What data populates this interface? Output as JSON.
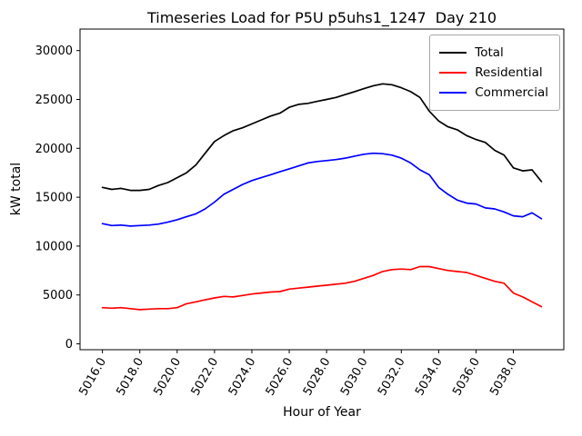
{
  "figure": {
    "title": "Timeseries Load for P5U p5uhs1_1247  Day 210",
    "xlabel": "Hour of Year",
    "ylabel": "kW total"
  },
  "chart_data": {
    "type": "line",
    "title": "Timeseries Load for P5U p5uhs1_1247  Day 210",
    "xlabel": "Hour of Year",
    "ylabel": "kW total",
    "legend_position": "upper right",
    "grid": false,
    "xlim": [
      5014.8,
      5040.7
    ],
    "ylim": [
      -600,
      32200
    ],
    "x_ticks": [
      5016.0,
      5018.0,
      5020.0,
      5022.0,
      5024.0,
      5026.0,
      5028.0,
      5030.0,
      5032.0,
      5034.0,
      5036.0,
      5038.0
    ],
    "y_ticks": [
      0,
      5000,
      10000,
      15000,
      20000,
      25000,
      30000
    ],
    "x": [
      5016.0,
      5016.5,
      5017.0,
      5017.5,
      5018.0,
      5018.5,
      5019.0,
      5019.5,
      5020.0,
      5020.5,
      5021.0,
      5021.5,
      5022.0,
      5022.5,
      5023.0,
      5023.5,
      5024.0,
      5024.5,
      5025.0,
      5025.5,
      5026.0,
      5026.5,
      5027.0,
      5027.5,
      5028.0,
      5028.5,
      5029.0,
      5029.5,
      5030.0,
      5030.5,
      5031.0,
      5031.5,
      5032.0,
      5032.5,
      5033.0,
      5033.5,
      5034.0,
      5034.5,
      5035.0,
      5035.5,
      5036.0,
      5036.5,
      5037.0,
      5037.5,
      5038.0,
      5038.5,
      5039.0,
      5039.5
    ],
    "series": [
      {
        "name": "Total",
        "color": "#000000",
        "values": [
          16000,
          15800,
          15900,
          15700,
          15700,
          15800,
          16200,
          16500,
          17000,
          17500,
          18300,
          19500,
          20700,
          21300,
          21800,
          22100,
          22500,
          22900,
          23300,
          23600,
          24200,
          24500,
          24600,
          24800,
          25000,
          25200,
          25500,
          25800,
          26100,
          26400,
          26600,
          26500,
          26200,
          25800,
          25200,
          23800,
          22800,
          22200,
          21900,
          21300,
          20900,
          20600,
          19800,
          19300,
          18000,
          17700,
          17800,
          16600
        ]
      },
      {
        "name": "Residential",
        "color": "#ff0000",
        "values": [
          3700,
          3650,
          3700,
          3600,
          3500,
          3550,
          3600,
          3600,
          3700,
          4100,
          4300,
          4500,
          4700,
          4850,
          4800,
          4950,
          5100,
          5200,
          5300,
          5350,
          5600,
          5700,
          5800,
          5900,
          6000,
          6100,
          6200,
          6400,
          6700,
          7000,
          7400,
          7600,
          7650,
          7600,
          7900,
          7900,
          7700,
          7500,
          7400,
          7300,
          7000,
          6700,
          6400,
          6200,
          5200,
          4800,
          4300,
          3800
        ]
      },
      {
        "name": "Commercial",
        "color": "#0000ff",
        "values": [
          12300,
          12100,
          12150,
          12050,
          12100,
          12150,
          12250,
          12450,
          12700,
          13000,
          13300,
          13800,
          14500,
          15300,
          15800,
          16300,
          16700,
          17000,
          17300,
          17600,
          17900,
          18200,
          18500,
          18650,
          18750,
          18850,
          19000,
          19200,
          19400,
          19500,
          19450,
          19300,
          19000,
          18500,
          17800,
          17300,
          16000,
          15300,
          14700,
          14400,
          14300,
          13900,
          13800,
          13500,
          13100,
          13000,
          13400,
          12800
        ]
      }
    ]
  }
}
